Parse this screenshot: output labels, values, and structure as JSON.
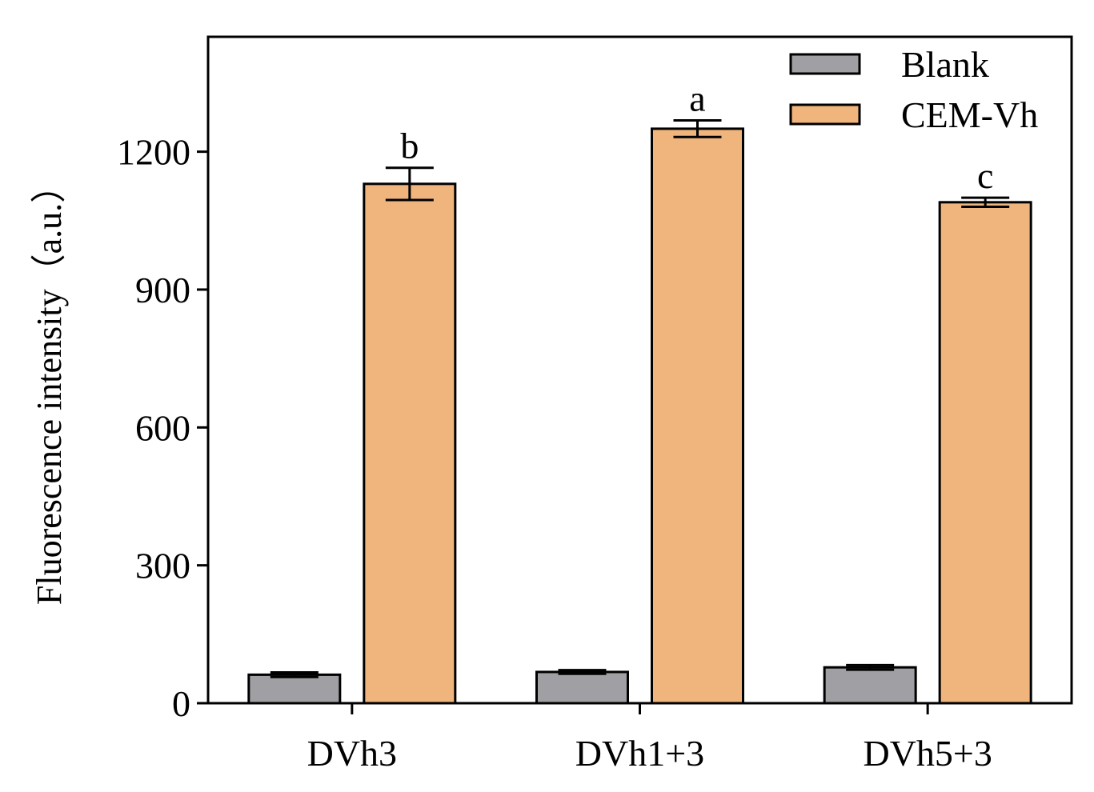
{
  "chart_data": {
    "type": "bar",
    "title": "",
    "xlabel": "",
    "ylabel": "Fluorescence intensity（a.u.）",
    "ylim": [
      0,
      1450
    ],
    "yticks": [
      0,
      300,
      600,
      900,
      1200
    ],
    "grid": false,
    "legend_position": "top-right",
    "categories": [
      "DVh3",
      "DVh1+3",
      "DVh5+3"
    ],
    "series": [
      {
        "name": "Blank",
        "color": "#a0a0a4",
        "values": [
          62,
          68,
          78
        ],
        "errors": [
          5,
          4,
          5
        ]
      },
      {
        "name": "CEM-Vh",
        "color": "#f0b57c",
        "values": [
          1130,
          1250,
          1090
        ],
        "errors": [
          35,
          18,
          10
        ],
        "significance": [
          "b",
          "a",
          "c"
        ]
      }
    ]
  }
}
